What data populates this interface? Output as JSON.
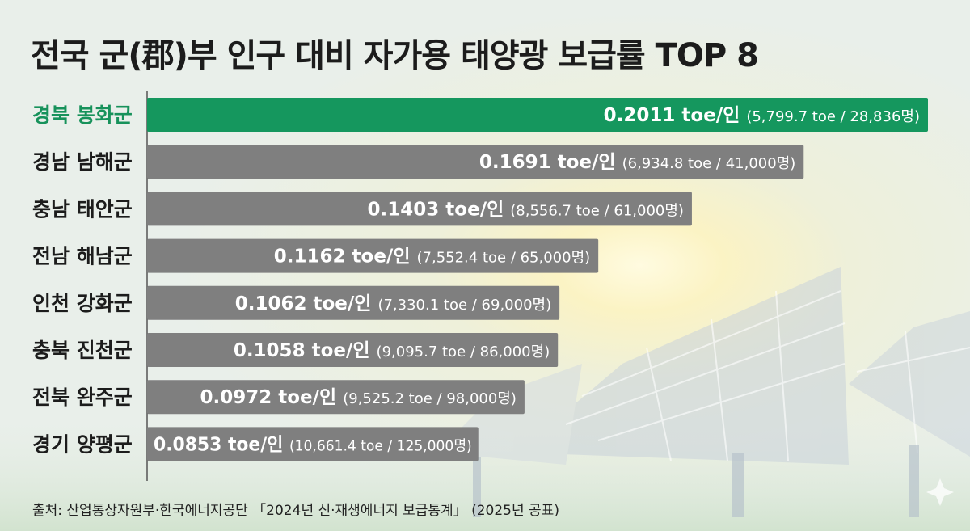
{
  "chart_data": {
    "type": "bar",
    "orientation": "horizontal",
    "title": "전국 군(郡)부 인구 대비 자가용 태양광 보급률 TOP 8",
    "categories": [
      "경북 봉화군",
      "경남 남해군",
      "충남 태안군",
      "전남 해남군",
      "인천 강화군",
      "충북 진천군",
      "전북 완주군",
      "경기 양평군"
    ],
    "values": [
      0.2011,
      0.1691,
      0.1403,
      0.1162,
      0.1062,
      0.1058,
      0.0972,
      0.0853
    ],
    "value_labels": [
      "0.2011 toe/인",
      "0.1691 toe/인",
      "0.1403 toe/인",
      "0.1162 toe/인",
      "0.1062 toe/인",
      "0.1058 toe/인",
      "0.0972 toe/인",
      "0.0853 toe/인"
    ],
    "detail_labels": [
      "(5,799.7 toe / 28,836명)",
      "(6,934.8 toe / 41,000명)",
      "(8,556.7 toe / 61,000명)",
      "(7,552.4 toe / 65,000명)",
      "(7,330.1 toe / 69,000명)",
      "(9,095.7 toe / 86,000명)",
      "(9,525.2 toe / 98,000명)",
      "(10,661.4 toe / 125,000명)"
    ],
    "highlight_index": 0,
    "colors": {
      "highlight": "#15975e",
      "bar": "#7f7f7f",
      "highlight_label": "#17925b",
      "label": "#1c1c1c"
    }
  },
  "source": "출처: 산업통상자원부·한국에너지공단 「2024년 신·재생에너지 보급통계」 (2025년 공표)"
}
